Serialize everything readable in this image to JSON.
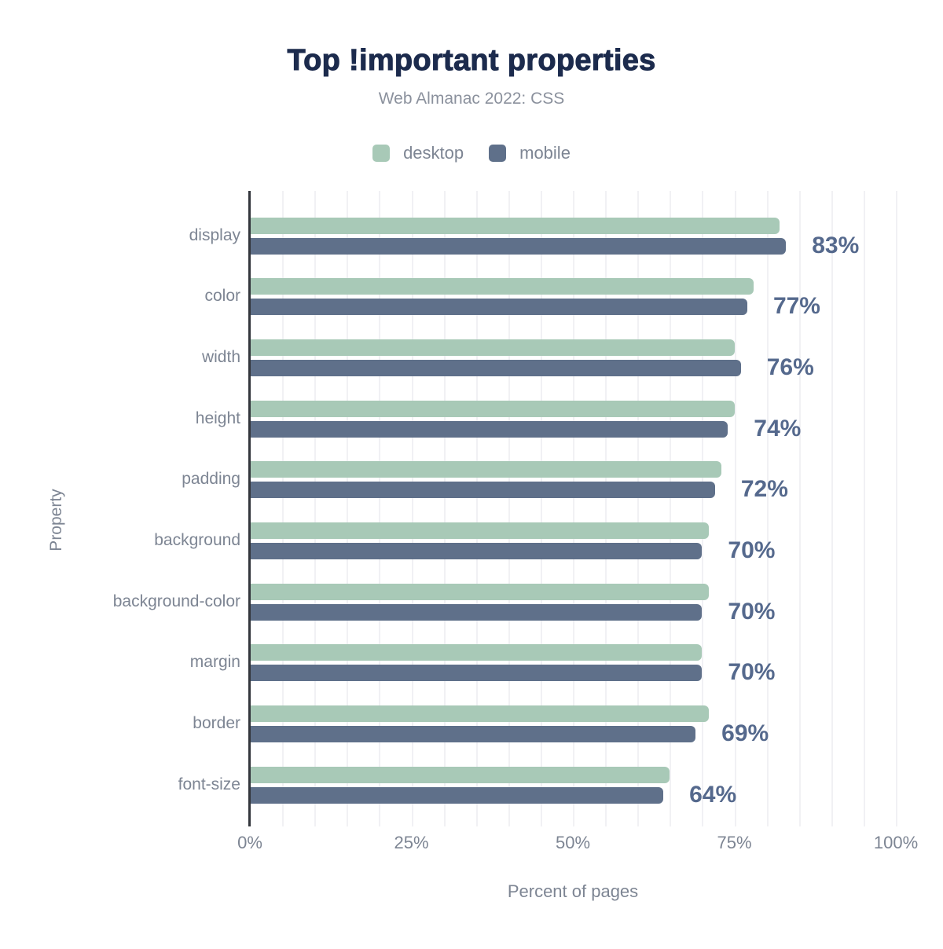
{
  "chart_data": {
    "type": "bar",
    "orientation": "horizontal",
    "title": "Top !important properties",
    "subtitle": "Web Almanac 2022: CSS",
    "xlabel": "Percent of pages",
    "ylabel": "Property",
    "categories": [
      "display",
      "color",
      "width",
      "height",
      "padding",
      "background",
      "background-color",
      "margin",
      "border",
      "font-size"
    ],
    "series": [
      {
        "name": "desktop",
        "color": "#a8c9b7",
        "values": [
          82,
          78,
          75,
          75,
          73,
          71,
          71,
          70,
          71,
          65
        ]
      },
      {
        "name": "mobile",
        "color": "#5f708a",
        "values": [
          83,
          77,
          76,
          74,
          72,
          70,
          70,
          70,
          69,
          64
        ]
      }
    ],
    "value_labels": [
      "83%",
      "77%",
      "76%",
      "74%",
      "72%",
      "70%",
      "70%",
      "70%",
      "69%",
      "64%"
    ],
    "x_ticks": [
      "0%",
      "25%",
      "50%",
      "75%",
      "100%"
    ],
    "x_tick_values": [
      0,
      25,
      50,
      75,
      100
    ],
    "xlim": [
      0,
      100
    ],
    "grid": "vertical gridlines every 5%",
    "legend_position": "top center"
  },
  "colors": {
    "desktop": "#a8c9b7",
    "mobile": "#5f708a",
    "title": "#1c2b4d",
    "subtitle": "#8b919d",
    "axis_text": "#7d8593",
    "value_label": "#55698d",
    "gridline": "#f1f1f4",
    "axis_line": "#33363c",
    "background": "#ffffff"
  }
}
